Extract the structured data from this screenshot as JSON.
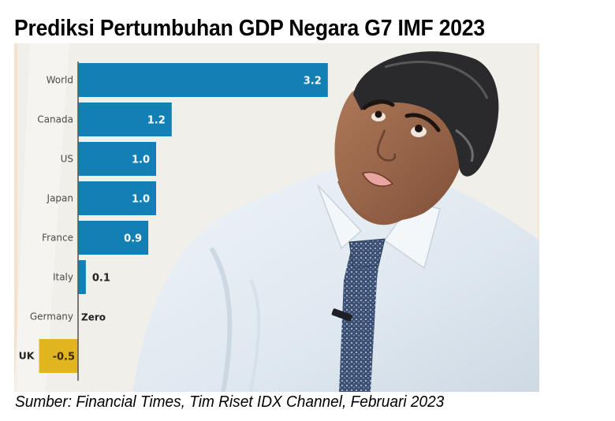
{
  "title": "Prediksi Pertumbuhan GDP Negara G7 IMF 2023",
  "source": "Sumber: Financial Times, Tim Riset IDX Channel, Februari 2023",
  "photo": {
    "subject": "person-photo",
    "description": "Man in white shirt and patterned blue tie looking up"
  },
  "colors": {
    "bar": "#1380b5",
    "highlight": "#e0b51f",
    "axis": "#5a5a5a",
    "background": "#f1efea"
  },
  "chart_data": {
    "type": "bar",
    "orientation": "horizontal",
    "title": "Prediksi Pertumbuhan GDP Negara G7 IMF 2023",
    "xlabel": "",
    "ylabel": "",
    "categories": [
      "World",
      "Canada",
      "US",
      "Japan",
      "France",
      "Italy",
      "Germany",
      "UK"
    ],
    "values": [
      3.2,
      1.2,
      1.0,
      1.0,
      0.9,
      0.1,
      0.0,
      -0.5
    ],
    "value_labels": [
      "3.2",
      "1.2",
      "1.0",
      "1.0",
      "0.9",
      "0.1",
      "Zero",
      "-0.5"
    ],
    "highlight": "UK",
    "xlim": [
      -0.5,
      3.2
    ],
    "grid": false,
    "legend": "none",
    "unit": "%"
  }
}
